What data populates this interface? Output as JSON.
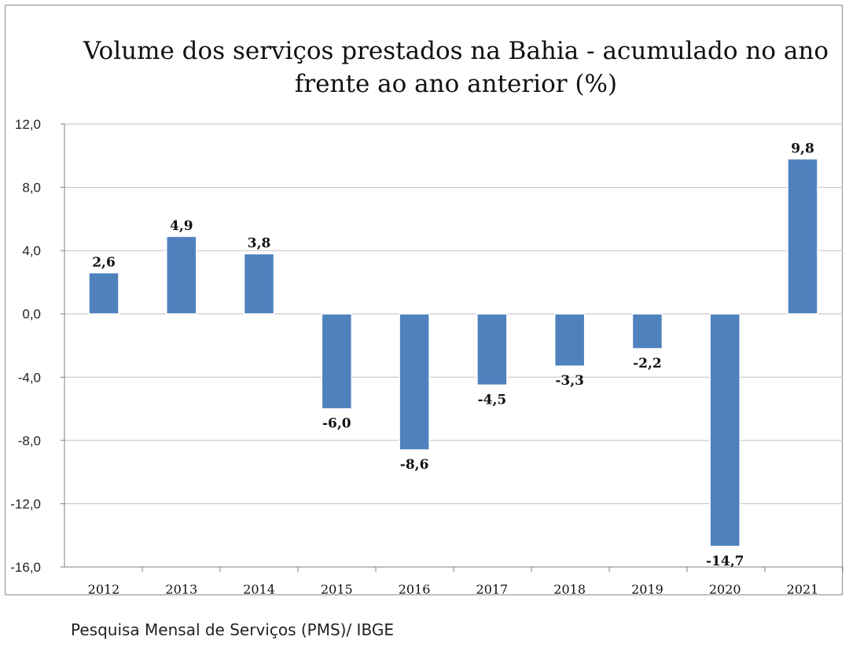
{
  "chart_data": {
    "type": "bar",
    "title": "Volume dos serviços prestados na Bahia - acumulado no ano\nfrente ao ano anterior (%)",
    "xlabel": "",
    "ylabel": "",
    "categories": [
      "2012",
      "2013",
      "2014",
      "2015",
      "2016",
      "2017",
      "2018",
      "2019",
      "2020",
      "2021"
    ],
    "values": [
      2.6,
      4.9,
      3.8,
      -6.0,
      -8.6,
      -4.5,
      -3.3,
      -2.2,
      -14.7,
      9.8
    ],
    "data_labels": [
      "2,6",
      "4,9",
      "3,8",
      "-6,0",
      "-8,6",
      "-4,5",
      "-3,3",
      "-2,2",
      "-14,7",
      "9,8"
    ],
    "ylim": [
      -16,
      12
    ],
    "yticks": [
      12,
      8,
      4,
      0,
      -4,
      -8,
      -12,
      -16
    ],
    "ytick_labels": [
      "12,0",
      "8,0",
      "4,0",
      "0,0",
      "-4,0",
      "-8,0",
      "-12,0",
      "-16,0"
    ],
    "grid": true,
    "legend": "none",
    "bar_color": "#4f81bd"
  },
  "source": "Pesquisa Mensal de Serviços (PMS)/ IBGE"
}
